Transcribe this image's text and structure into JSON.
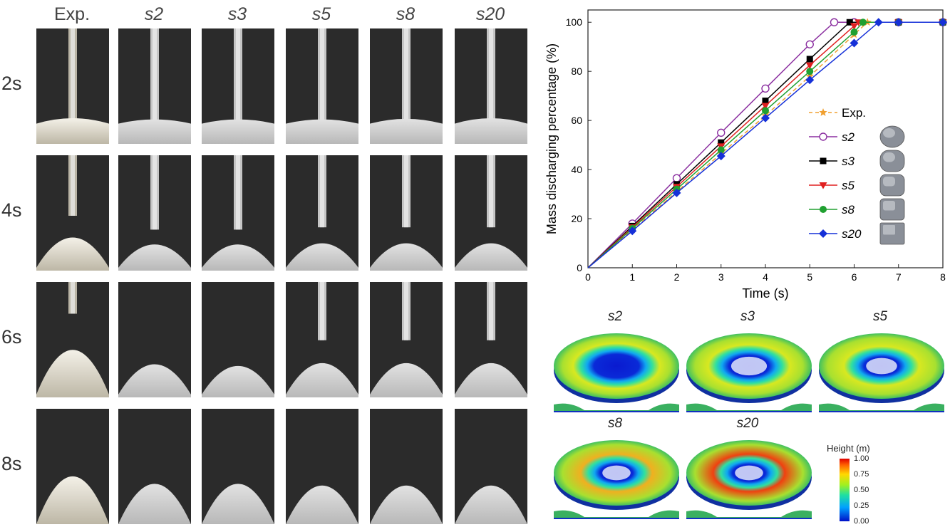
{
  "grid": {
    "columns": [
      "Exp.",
      "s2",
      "s3",
      "s5",
      "s8",
      "s20"
    ],
    "rows": [
      "2s",
      "4s",
      "6s",
      "8s"
    ]
  },
  "chart_data": {
    "type": "line",
    "xlabel": "Time (s)",
    "ylabel": "Mass discharging percentage (%)",
    "xlim": [
      0,
      8
    ],
    "ylim": [
      0,
      105
    ],
    "xticks": [
      "0",
      "1",
      "2",
      "3",
      "4",
      "5",
      "6",
      "7",
      "8"
    ],
    "yticks": [
      "0",
      "20",
      "40",
      "60",
      "80",
      "100"
    ],
    "legend_position": "right",
    "series": [
      {
        "name": "Exp.",
        "color": "#f0a030",
        "marker": "star",
        "dashed": true,
        "x": [
          0,
          1,
          2,
          3,
          4,
          5,
          6,
          6.3
        ],
        "y": [
          0,
          15.5,
          31,
          46.5,
          62,
          78,
          95,
          100
        ]
      },
      {
        "name": "s2",
        "color": "#8b2fa0",
        "marker": "open-circle",
        "dashed": false,
        "x": [
          0,
          1,
          2,
          3,
          4,
          5,
          5.55,
          6,
          7,
          8
        ],
        "y": [
          0,
          18,
          36.5,
          55,
          73,
          91,
          100,
          100,
          100,
          100
        ]
      },
      {
        "name": "s3",
        "color": "#000000",
        "marker": "square",
        "dashed": false,
        "x": [
          0,
          1,
          2,
          3,
          4,
          5,
          5.9,
          7,
          8
        ],
        "y": [
          0,
          17,
          34,
          51,
          68,
          85,
          100,
          100,
          100
        ]
      },
      {
        "name": "s5",
        "color": "#e02020",
        "marker": "triangle-down",
        "dashed": false,
        "x": [
          0,
          1,
          2,
          3,
          4,
          5,
          6,
          6.1,
          7,
          8
        ],
        "y": [
          0,
          16.5,
          33,
          49.5,
          66,
          82.5,
          98.5,
          100,
          100,
          100
        ]
      },
      {
        "name": "s8",
        "color": "#20a030",
        "marker": "circle",
        "dashed": false,
        "x": [
          0,
          1,
          2,
          3,
          4,
          5,
          6,
          6.2,
          7,
          8
        ],
        "y": [
          0,
          16,
          32,
          48,
          64,
          80,
          96,
          100,
          100,
          100
        ]
      },
      {
        "name": "s20",
        "color": "#1530d8",
        "marker": "diamond",
        "dashed": false,
        "x": [
          0,
          1,
          2,
          3,
          4,
          5,
          6,
          6.55,
          7,
          8
        ],
        "y": [
          0,
          15,
          30.5,
          45.5,
          61,
          76.5,
          91.5,
          100,
          100,
          100
        ]
      }
    ]
  },
  "maps": {
    "titles": [
      "s2",
      "s3",
      "s5",
      "s8",
      "s20"
    ],
    "colorbar_title": "Height (m)",
    "colorbar_ticks": [
      "1.00",
      "0.75",
      "0.50",
      "0.25",
      "0.00"
    ]
  }
}
